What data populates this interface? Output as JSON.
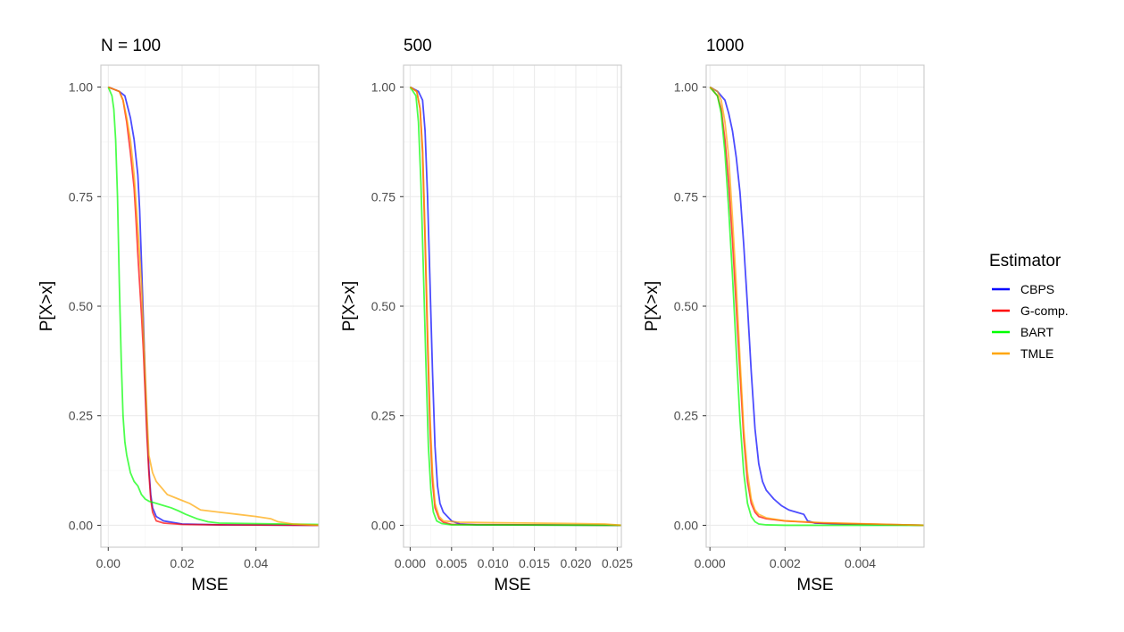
{
  "chart_data": [
    {
      "type": "line",
      "title": "N = 100",
      "xlabel": "MSE",
      "ylabel": "P[X>x]",
      "xlim": [
        -0.002,
        0.057
      ],
      "ylim": [
        -0.05,
        1.05
      ],
      "x_ticks": [
        0.0,
        0.02,
        0.04
      ],
      "x_tick_labels": [
        "0.00",
        "0.02",
        "0.04"
      ],
      "y_ticks": [
        0.0,
        0.25,
        0.5,
        0.75,
        1.0
      ],
      "y_tick_labels": [
        "0.00",
        "0.25",
        "0.50",
        "0.75",
        "1.00"
      ],
      "grid": true,
      "series": [
        {
          "name": "CBPS",
          "x": [
            0.0,
            0.003,
            0.0045,
            0.006,
            0.007,
            0.008,
            0.0085,
            0.009,
            0.0095,
            0.01,
            0.0105,
            0.011,
            0.0115,
            0.012,
            0.013,
            0.015,
            0.02,
            0.03,
            0.057
          ],
          "y": [
            1.0,
            0.99,
            0.98,
            0.93,
            0.88,
            0.8,
            0.72,
            0.6,
            0.47,
            0.33,
            0.22,
            0.13,
            0.07,
            0.04,
            0.02,
            0.01,
            0.003,
            0.001,
            0.0
          ]
        },
        {
          "name": "G-comp.",
          "x": [
            0.0,
            0.003,
            0.004,
            0.005,
            0.006,
            0.007,
            0.0075,
            0.008,
            0.0085,
            0.009,
            0.0095,
            0.01,
            0.0105,
            0.011,
            0.0115,
            0.012,
            0.013,
            0.015,
            0.02,
            0.03,
            0.057
          ],
          "y": [
            1.0,
            0.99,
            0.97,
            0.92,
            0.85,
            0.77,
            0.7,
            0.62,
            0.55,
            0.48,
            0.4,
            0.3,
            0.2,
            0.12,
            0.06,
            0.03,
            0.01,
            0.005,
            0.002,
            0.001,
            0.0
          ]
        },
        {
          "name": "BART",
          "x": [
            0.0,
            0.001,
            0.0015,
            0.002,
            0.0025,
            0.003,
            0.0035,
            0.004,
            0.0045,
            0.005,
            0.006,
            0.007,
            0.008,
            0.009,
            0.01,
            0.011,
            0.013,
            0.015,
            0.017,
            0.019,
            0.021,
            0.024,
            0.027,
            0.03,
            0.057
          ],
          "y": [
            1.0,
            0.98,
            0.95,
            0.88,
            0.75,
            0.55,
            0.38,
            0.25,
            0.19,
            0.16,
            0.12,
            0.1,
            0.09,
            0.07,
            0.06,
            0.055,
            0.05,
            0.045,
            0.04,
            0.033,
            0.025,
            0.015,
            0.008,
            0.005,
            0.002
          ]
        },
        {
          "name": "TMLE",
          "x": [
            0.0,
            0.003,
            0.004,
            0.005,
            0.006,
            0.007,
            0.008,
            0.009,
            0.0095,
            0.01,
            0.0105,
            0.011,
            0.012,
            0.013,
            0.014,
            0.016,
            0.019,
            0.022,
            0.025,
            0.03,
            0.035,
            0.04,
            0.044,
            0.046,
            0.05,
            0.057
          ],
          "y": [
            1.0,
            0.99,
            0.97,
            0.93,
            0.88,
            0.8,
            0.68,
            0.55,
            0.45,
            0.35,
            0.25,
            0.16,
            0.12,
            0.1,
            0.09,
            0.07,
            0.06,
            0.05,
            0.035,
            0.03,
            0.025,
            0.02,
            0.015,
            0.008,
            0.003,
            0.0
          ]
        }
      ]
    },
    {
      "type": "line",
      "title": "500",
      "xlabel": "MSE",
      "ylabel": "P[X>x]",
      "xlim": [
        -0.0008,
        0.0255
      ],
      "ylim": [
        -0.05,
        1.05
      ],
      "x_ticks": [
        0.0,
        0.005,
        0.01,
        0.015,
        0.02,
        0.025
      ],
      "x_tick_labels": [
        "0.000",
        "0.005",
        "0.010",
        "0.015",
        "0.020",
        "0.025"
      ],
      "y_ticks": [
        0.0,
        0.25,
        0.5,
        0.75,
        1.0
      ],
      "y_tick_labels": [
        "0.00",
        "0.25",
        "0.50",
        "0.75",
        "1.00"
      ],
      "grid": true,
      "series": [
        {
          "name": "CBPS",
          "x": [
            0.0,
            0.001,
            0.0015,
            0.0018,
            0.0021,
            0.0024,
            0.0027,
            0.003,
            0.0033,
            0.0036,
            0.004,
            0.0045,
            0.005,
            0.006,
            0.008,
            0.0255
          ],
          "y": [
            1.0,
            0.99,
            0.97,
            0.9,
            0.75,
            0.55,
            0.35,
            0.18,
            0.09,
            0.05,
            0.03,
            0.02,
            0.01,
            0.003,
            0.001,
            0.0
          ]
        },
        {
          "name": "G-comp.",
          "x": [
            0.0,
            0.0008,
            0.0012,
            0.0015,
            0.0018,
            0.0021,
            0.0024,
            0.0027,
            0.003,
            0.0035,
            0.004,
            0.005,
            0.0255
          ],
          "y": [
            1.0,
            0.99,
            0.95,
            0.85,
            0.65,
            0.42,
            0.22,
            0.1,
            0.04,
            0.015,
            0.007,
            0.002,
            0.0
          ]
        },
        {
          "name": "BART",
          "x": [
            0.0,
            0.0007,
            0.001,
            0.0013,
            0.0016,
            0.0019,
            0.0022,
            0.0025,
            0.0028,
            0.0032,
            0.0038,
            0.005,
            0.0255
          ],
          "y": [
            1.0,
            0.98,
            0.92,
            0.78,
            0.58,
            0.37,
            0.18,
            0.08,
            0.03,
            0.01,
            0.004,
            0.001,
            0.0
          ]
        },
        {
          "name": "TMLE",
          "x": [
            0.0,
            0.0008,
            0.0012,
            0.0015,
            0.0018,
            0.0021,
            0.0024,
            0.0027,
            0.003,
            0.0035,
            0.004,
            0.006,
            0.01,
            0.015,
            0.02,
            0.0235,
            0.0255
          ],
          "y": [
            1.0,
            0.99,
            0.95,
            0.86,
            0.67,
            0.45,
            0.25,
            0.12,
            0.05,
            0.02,
            0.01,
            0.007,
            0.006,
            0.005,
            0.004,
            0.003,
            0.0
          ]
        }
      ]
    },
    {
      "type": "line",
      "title": "1000",
      "xlabel": "MSE",
      "ylabel": "P[X>x]",
      "xlim": [
        -0.0001,
        0.0057
      ],
      "ylim": [
        -0.05,
        1.05
      ],
      "x_ticks": [
        0.0,
        0.002,
        0.004
      ],
      "x_tick_labels": [
        "0.000",
        "0.002",
        "0.004"
      ],
      "y_ticks": [
        0.0,
        0.25,
        0.5,
        0.75,
        1.0
      ],
      "y_tick_labels": [
        "0.00",
        "0.25",
        "0.50",
        "0.75",
        "1.00"
      ],
      "grid": true,
      "series": [
        {
          "name": "CBPS",
          "x": [
            0.0,
            0.0002,
            0.0004,
            0.0005,
            0.0006,
            0.0007,
            0.0008,
            0.0009,
            0.001,
            0.0011,
            0.0012,
            0.0013,
            0.0014,
            0.0015,
            0.0016,
            0.0017,
            0.0019,
            0.0021,
            0.0023,
            0.0025,
            0.0026,
            0.0028,
            0.0035,
            0.0057
          ],
          "y": [
            1.0,
            0.99,
            0.97,
            0.94,
            0.9,
            0.84,
            0.76,
            0.64,
            0.5,
            0.35,
            0.22,
            0.14,
            0.1,
            0.08,
            0.07,
            0.06,
            0.045,
            0.035,
            0.03,
            0.025,
            0.01,
            0.005,
            0.003,
            0.0
          ]
        },
        {
          "name": "G-comp.",
          "x": [
            0.0,
            0.0002,
            0.0003,
            0.0004,
            0.0005,
            0.0006,
            0.0007,
            0.0008,
            0.0009,
            0.001,
            0.0011,
            0.0012,
            0.0013,
            0.0015,
            0.002,
            0.003,
            0.0057
          ],
          "y": [
            1.0,
            0.98,
            0.95,
            0.88,
            0.78,
            0.65,
            0.5,
            0.35,
            0.2,
            0.1,
            0.05,
            0.03,
            0.02,
            0.015,
            0.01,
            0.005,
            0.0
          ]
        },
        {
          "name": "BART",
          "x": [
            0.0,
            0.0002,
            0.0003,
            0.0004,
            0.0005,
            0.0006,
            0.0007,
            0.0008,
            0.0009,
            0.001,
            0.0011,
            0.0012,
            0.0013,
            0.0015,
            0.002,
            0.0057
          ],
          "y": [
            1.0,
            0.98,
            0.94,
            0.85,
            0.72,
            0.57,
            0.4,
            0.24,
            0.12,
            0.05,
            0.02,
            0.008,
            0.003,
            0.001,
            0.0,
            0.0
          ]
        },
        {
          "name": "TMLE",
          "x": [
            0.0,
            0.0002,
            0.0003,
            0.0004,
            0.0005,
            0.0006,
            0.0007,
            0.0008,
            0.0009,
            0.001,
            0.0011,
            0.0012,
            0.0013,
            0.0015,
            0.002,
            0.003,
            0.0057
          ],
          "y": [
            1.0,
            0.99,
            0.97,
            0.92,
            0.84,
            0.7,
            0.55,
            0.38,
            0.22,
            0.12,
            0.06,
            0.035,
            0.025,
            0.017,
            0.01,
            0.006,
            0.0
          ]
        }
      ]
    }
  ],
  "legend": {
    "title": "Estimator",
    "placement": "right",
    "items": [
      {
        "label": "CBPS",
        "color": "#0000FF"
      },
      {
        "label": "G-comp.",
        "color": "#FF0000"
      },
      {
        "label": "BART",
        "color": "#00FF00"
      },
      {
        "label": "TMLE",
        "color": "#FFA500"
      }
    ]
  },
  "colors": {
    "CBPS": "#0000FF",
    "G-comp.": "#FF0000",
    "BART": "#00FF00",
    "TMLE": "#FFA500",
    "grid_major": "#ebebeb",
    "grid_minor": "#f5f5f5",
    "panel_border": "#c9c9c9",
    "tick_label": "#4d4d4d"
  }
}
